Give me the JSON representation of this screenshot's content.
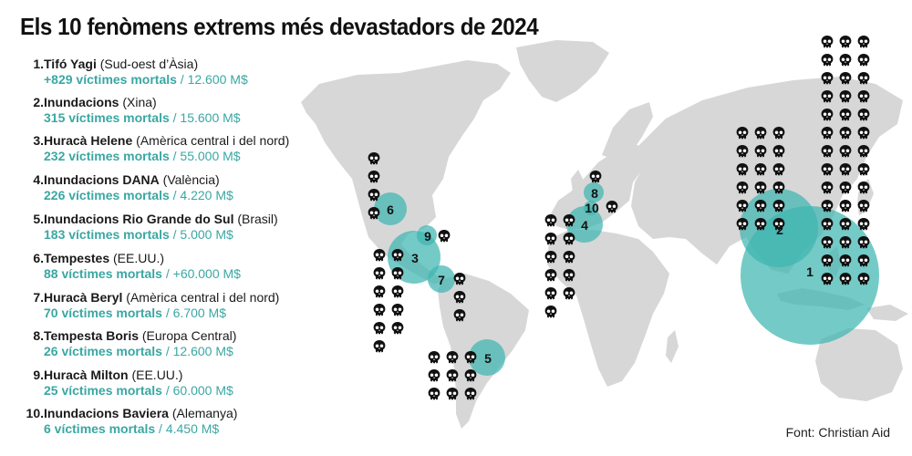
{
  "title": "Els 10 fenòmens extrems més devastadors de 2024",
  "source": "Font: Christian Aid",
  "colors": {
    "land": "#d7d7d7",
    "bubble": "#3fb6b0",
    "accent_text": "#3aa7a3",
    "skull": "#111111"
  },
  "icon": "skull-icon",
  "events": [
    {
      "rank": "1.",
      "name": "Tifó Yagi",
      "region": "(Sud-oest d’Àsia)",
      "deaths": "+829 víctimes mortals",
      "cost": " / 12.600 M$",
      "marker": "1"
    },
    {
      "rank": "2.",
      "name": "Inundacions",
      "region": "(Xina)",
      "deaths": "315 víctimes mortals",
      "cost": " / 15.600 M$",
      "marker": "2"
    },
    {
      "rank": "3.",
      "name": "Huracà Helene",
      "region": "(Amèrica central i del nord)",
      "deaths": "232 víctimes mortals",
      "cost": " / 55.000 M$",
      "marker": "3"
    },
    {
      "rank": "4.",
      "name": "Inundacions DANA",
      "region": "(València)",
      "deaths": "226 víctimes mortals",
      "cost": " / 4.220 M$",
      "marker": "4"
    },
    {
      "rank": "5.",
      "name": "Inundacions Rio Grande do Sul",
      "region": "(Brasil)",
      "deaths": "183 víctimes mortals",
      "cost": " / 5.000 M$",
      "marker": "5"
    },
    {
      "rank": "6.",
      "name": "Tempestes",
      "region": "(EE.UU.)",
      "deaths": "88 víctimes mortals",
      "cost": " / +60.000 M$",
      "marker": "6"
    },
    {
      "rank": "7.",
      "name": "Huracà Beryl",
      "region": "(Amèrica central i del nord)",
      "deaths": "70 víctimes mortals",
      "cost": " / 6.700 M$",
      "marker": "7"
    },
    {
      "rank": "8.",
      "name": "Tempesta Boris",
      "region": "(Europa Central)",
      "deaths": "26 víctimes mortals",
      "cost": " / 12.600 M$",
      "marker": "8"
    },
    {
      "rank": "9.",
      "name": "Huracà Milton",
      "region": "(EE.UU.)",
      "deaths": "25 víctimes mortals",
      "cost": " / 60.000 M$",
      "marker": "9"
    },
    {
      "rank": "10.",
      "name": "Inundacions Baviera",
      "region": "(Alemanya)",
      "deaths": "6 víctimes mortals",
      "cost": " / 4.450 M$",
      "marker": "10"
    }
  ]
}
